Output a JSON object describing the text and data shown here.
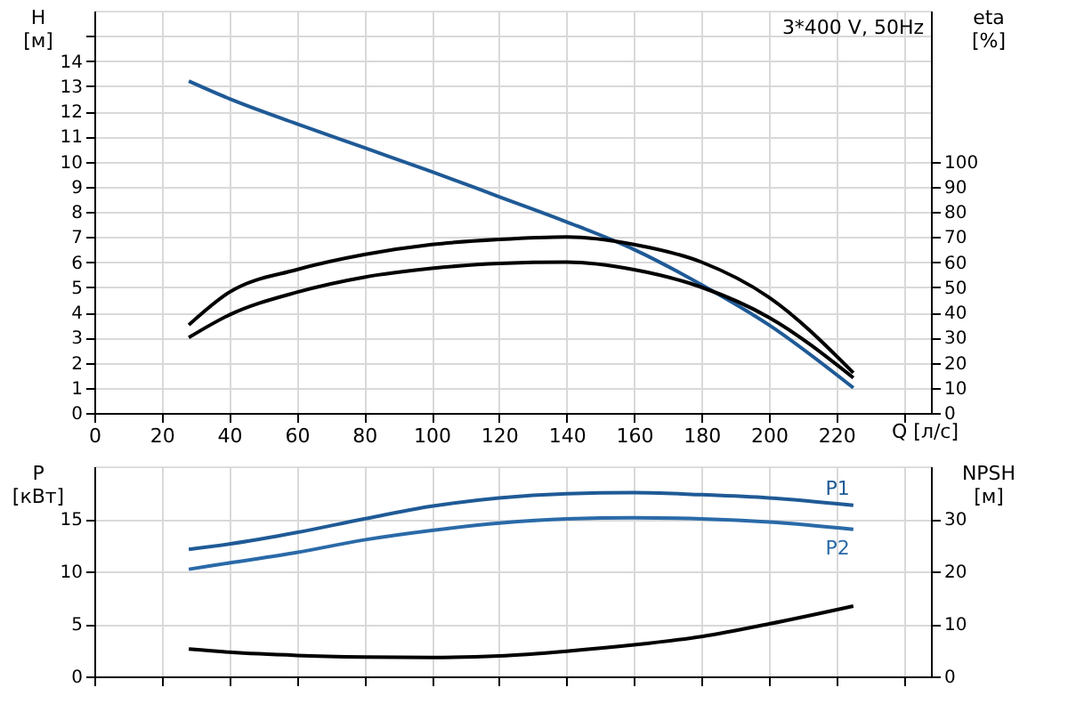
{
  "chart_data": [
    {
      "type": "line",
      "annotations": [
        "3*400 V, 50Hz"
      ],
      "xlabel": "Q [л/с]",
      "ylabel": "H [м]",
      "y2label": "eta [%]",
      "x": [
        28,
        40,
        60,
        80,
        100,
        120,
        140,
        160,
        180,
        200,
        225
      ],
      "xlim": [
        0,
        248
      ],
      "xticks": [
        0,
        20,
        40,
        60,
        80,
        100,
        120,
        140,
        160,
        180,
        200,
        220,
        {
          "value": 240,
          "label": null
        }
      ],
      "ylim": [
        0,
        16
      ],
      "yticks": [
        0,
        1,
        2,
        3,
        4,
        5,
        6,
        7,
        8,
        9,
        10,
        11,
        12,
        13,
        14,
        {
          "value": 15,
          "label": null
        }
      ],
      "y2lim": [
        0,
        160
      ],
      "y2ticks": [
        0,
        10,
        20,
        30,
        40,
        50,
        60,
        70,
        80,
        90,
        100
      ],
      "grid": true,
      "legend": false,
      "marker": "none",
      "line_style": "solid",
      "series": [
        {
          "color": "#1f5a96",
          "values": [
            13.2,
            12.5,
            11.5,
            10.55,
            9.6,
            8.6,
            7.6,
            6.5,
            5.1,
            3.5,
            1.0
          ]
        },
        {
          "color": "#000000",
          "axis": "y2",
          "values": [
            35,
            48,
            57,
            63,
            67,
            69,
            70,
            67,
            60,
            46,
            16
          ]
        },
        {
          "color": "#000000",
          "axis": "y2",
          "values": [
            30,
            39,
            48,
            54,
            57.5,
            59.5,
            60,
            57,
            50,
            38,
            14
          ]
        }
      ]
    },
    {
      "type": "line",
      "ylabel": "P [кВт]",
      "y2label": "NPSH [м]",
      "x": [
        28,
        40,
        60,
        80,
        100,
        120,
        140,
        160,
        180,
        200,
        225
      ],
      "xlim": [
        0,
        248
      ],
      "xticks": [
        0,
        20,
        40,
        60,
        80,
        100,
        120,
        140,
        160,
        180,
        200,
        220,
        240
      ],
      "ylim": [
        0,
        20
      ],
      "yticks": [
        0,
        5,
        10,
        15
      ],
      "y2lim": [
        0,
        40
      ],
      "y2ticks": [
        0,
        10,
        20,
        30
      ],
      "tick_labels": "y",
      "grid": true,
      "legend": false,
      "marker": "none",
      "line_style": "solid",
      "series": [
        {
          "name": "P1",
          "color": "#1f5a96",
          "values": [
            12.1,
            12.6,
            13.7,
            15.0,
            16.2,
            17.0,
            17.4,
            17.5,
            17.3,
            17.0,
            16.3
          ]
        },
        {
          "name": "P2",
          "color": "#2a6aa8",
          "values": [
            10.2,
            10.8,
            11.8,
            13.0,
            13.9,
            14.6,
            15.0,
            15.1,
            15.0,
            14.7,
            14.0
          ]
        },
        {
          "color": "#000000",
          "axis": "y2",
          "values": [
            5.2,
            4.6,
            4.0,
            3.7,
            3.6,
            3.9,
            4.8,
            6.0,
            7.6,
            10.0,
            13.4
          ]
        }
      ]
    }
  ]
}
